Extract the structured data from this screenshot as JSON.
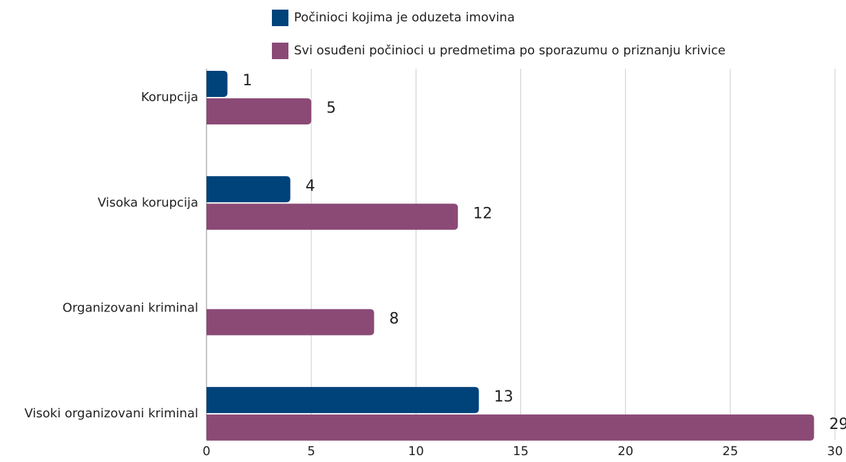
{
  "chart_data": {
    "type": "hbar",
    "categories": [
      "Korupcija",
      "Visoka korupcija",
      "Organizovani kriminal",
      "Visoki organizovani kriminal"
    ],
    "series": [
      {
        "name": "Počinioci kojima je oduzeta imovina",
        "color": "#00427a",
        "values": [
          1,
          4,
          null,
          13
        ]
      },
      {
        "name": "Svi osuđeni počinioci u predmetima po sporazumu o priznanju krivice",
        "color": "#8b4a76",
        "values": [
          5,
          12,
          8,
          29
        ]
      }
    ],
    "xlim": [
      0,
      30
    ],
    "xticks": [
      0,
      5,
      10,
      15,
      20,
      25,
      30
    ],
    "grid": true,
    "legend": "top"
  }
}
